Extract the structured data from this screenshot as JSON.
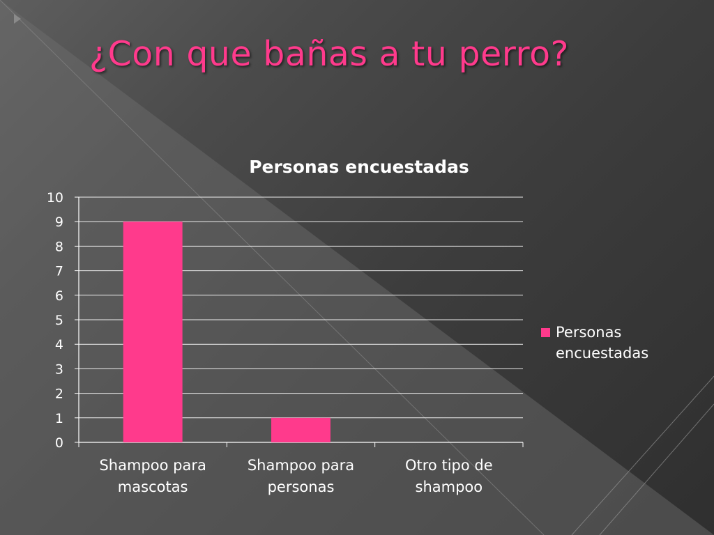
{
  "slide": {
    "title": "¿Con que bañas a tu perro?"
  },
  "colors": {
    "title": "#ff3a8c",
    "bar": "#ff3a8c",
    "text": "#ffffff",
    "gridline": "#ffffff"
  },
  "chart_data": {
    "type": "bar",
    "title": "Personas encuestadas",
    "categories": [
      "Shampoo para mascotas",
      "Shampoo para personas",
      "Otro tipo de shampoo"
    ],
    "category_lines": [
      [
        "Shampoo para",
        "mascotas"
      ],
      [
        "Shampoo para",
        "personas"
      ],
      [
        "Otro tipo de",
        "shampoo"
      ]
    ],
    "series": [
      {
        "name": "Personas encuestadas",
        "values": [
          9,
          1,
          0
        ]
      }
    ],
    "legend_lines": [
      "Personas",
      "encuestadas"
    ],
    "yticks": [
      0,
      1,
      2,
      3,
      4,
      5,
      6,
      7,
      8,
      9,
      10
    ],
    "ylim": [
      0,
      10
    ],
    "xlabel": "",
    "ylabel": "",
    "grid": true,
    "legend_position": "right"
  }
}
